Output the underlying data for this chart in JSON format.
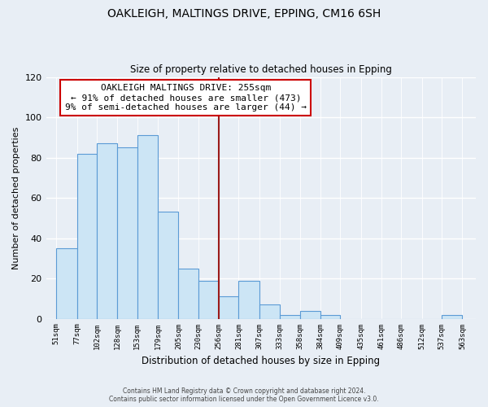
{
  "title": "OAKLEIGH, MALTINGS DRIVE, EPPING, CM16 6SH",
  "subtitle": "Size of property relative to detached houses in Epping",
  "xlabel": "Distribution of detached houses by size in Epping",
  "ylabel": "Number of detached properties",
  "bins": [
    51,
    77,
    102,
    128,
    153,
    179,
    205,
    230,
    256,
    281,
    307,
    333,
    358,
    384,
    409,
    435,
    461,
    486,
    512,
    537,
    563
  ],
  "counts": [
    35,
    82,
    87,
    85,
    91,
    53,
    25,
    19,
    11,
    19,
    7,
    2,
    4,
    2,
    0,
    0,
    0,
    0,
    0,
    2
  ],
  "bar_color": "#cce5f5",
  "bar_edge_color": "#5b9bd5",
  "vline_x": 256,
  "vline_color": "#9b1a1a",
  "annotation_title": "OAKLEIGH MALTINGS DRIVE: 255sqm",
  "annotation_line1": "← 91% of detached houses are smaller (473)",
  "annotation_line2": "9% of semi-detached houses are larger (44) →",
  "annotation_box_color": "#ffffff",
  "annotation_box_edge": "#cc0000",
  "footer_line1": "Contains HM Land Registry data © Crown copyright and database right 2024.",
  "footer_line2": "Contains public sector information licensed under the Open Government Licence v3.0.",
  "ylim": [
    0,
    120
  ],
  "xlim_left": 38,
  "xlim_right": 580,
  "background_color": "#e8eef5",
  "grid_color": "#ffffff",
  "yticks": [
    0,
    20,
    40,
    60,
    80,
    100,
    120
  ]
}
